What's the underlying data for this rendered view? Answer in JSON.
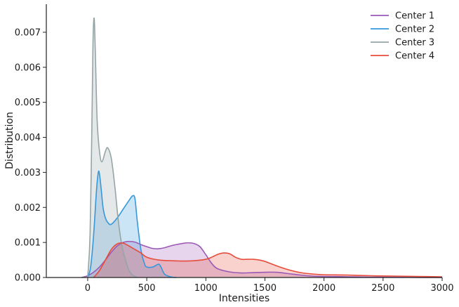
{
  "chart_data": {
    "type": "area",
    "xlabel": "Intensities",
    "ylabel": "Distribution",
    "xlim": [
      -350,
      3000
    ],
    "ylim": [
      0,
      0.0078
    ],
    "x_ticks": [
      0,
      500,
      1000,
      1500,
      2000,
      2500,
      3000
    ],
    "x_tick_labels": [
      "0",
      "500",
      "1000",
      "1500",
      "2000",
      "2500",
      "3000"
    ],
    "y_ticks": [
      0,
      0.001,
      0.002,
      0.003,
      0.004,
      0.005,
      0.006,
      0.007
    ],
    "y_tick_labels": [
      "0.000",
      "0.001",
      "0.002",
      "0.003",
      "0.004",
      "0.005",
      "0.006",
      "0.007"
    ],
    "grid": false,
    "legend_position": "top-right",
    "series": [
      {
        "name": "Center 1",
        "color": "#9b59b6",
        "x": [
          -50,
          0,
          50,
          100,
          150,
          200,
          250,
          300,
          350,
          400,
          450,
          500,
          550,
          600,
          650,
          700,
          750,
          800,
          850,
          900,
          950,
          1000,
          1050,
          1100,
          1200,
          1300,
          1400,
          1500,
          1600,
          1700,
          1800,
          1900,
          2000,
          2200,
          2400,
          2600,
          2800,
          3000
        ],
        "y": [
          0.0,
          5e-05,
          0.00015,
          0.0003,
          0.0005,
          0.00072,
          0.0009,
          0.001,
          0.00103,
          0.00101,
          0.00094,
          0.00088,
          0.00083,
          0.00082,
          0.00085,
          0.0009,
          0.00094,
          0.00097,
          0.00099,
          0.00097,
          0.00088,
          0.00065,
          0.0004,
          0.00025,
          0.00016,
          0.00013,
          0.00014,
          0.00015,
          0.00015,
          0.00011,
          7e-05,
          4e-05,
          3e-05,
          2e-05,
          1e-05,
          1e-05,
          0.0,
          0.0
        ]
      },
      {
        "name": "Center 2",
        "color": "#3498db",
        "x": [
          0,
          25,
          50,
          75,
          90,
          100,
          115,
          130,
          150,
          175,
          200,
          250,
          300,
          350,
          380,
          400,
          420,
          450,
          480,
          500,
          550,
          600,
          620,
          650,
          700,
          750
        ],
        "y": [
          0.0,
          0.0003,
          0.0012,
          0.0025,
          0.003,
          0.00295,
          0.0025,
          0.002,
          0.0017,
          0.00155,
          0.00152,
          0.0017,
          0.00195,
          0.0022,
          0.00233,
          0.00225,
          0.0016,
          0.0008,
          0.0004,
          0.0003,
          0.0003,
          0.00038,
          0.0003,
          0.0001,
          2e-05,
          0.0
        ]
      },
      {
        "name": "Center 3",
        "color": "#95a5a6",
        "x": [
          0,
          20,
          35,
          45,
          55,
          65,
          80,
          100,
          120,
          150,
          170,
          200,
          230,
          260,
          290,
          320,
          350,
          380,
          420
        ],
        "y": [
          0.0,
          0.0012,
          0.0042,
          0.0067,
          0.0074,
          0.0064,
          0.0045,
          0.0036,
          0.0033,
          0.0036,
          0.0037,
          0.0034,
          0.0026,
          0.0016,
          0.0009,
          0.0005,
          0.0002,
          7e-05,
          0.0
        ]
      },
      {
        "name": "Center 4",
        "color": "#e74c3c",
        "x": [
          50,
          100,
          150,
          200,
          250,
          300,
          350,
          400,
          450,
          500,
          600,
          700,
          800,
          900,
          1000,
          1050,
          1100,
          1150,
          1200,
          1250,
          1300,
          1350,
          1400,
          1450,
          1500,
          1600,
          1700,
          1800,
          1900,
          2000,
          2200,
          2400,
          2600,
          2800,
          3000
        ],
        "y": [
          0.0,
          0.0002,
          0.0005,
          0.0008,
          0.00096,
          0.00098,
          0.0009,
          0.0008,
          0.0007,
          0.00058,
          0.0005,
          0.00048,
          0.00047,
          0.00048,
          0.00052,
          0.00058,
          0.00066,
          0.0007,
          0.00068,
          0.00058,
          0.00052,
          0.00052,
          0.00052,
          0.0005,
          0.00046,
          0.00033,
          0.00022,
          0.00014,
          0.0001,
          8e-05,
          7e-05,
          5e-05,
          4e-05,
          3e-05,
          2e-05
        ]
      }
    ]
  }
}
